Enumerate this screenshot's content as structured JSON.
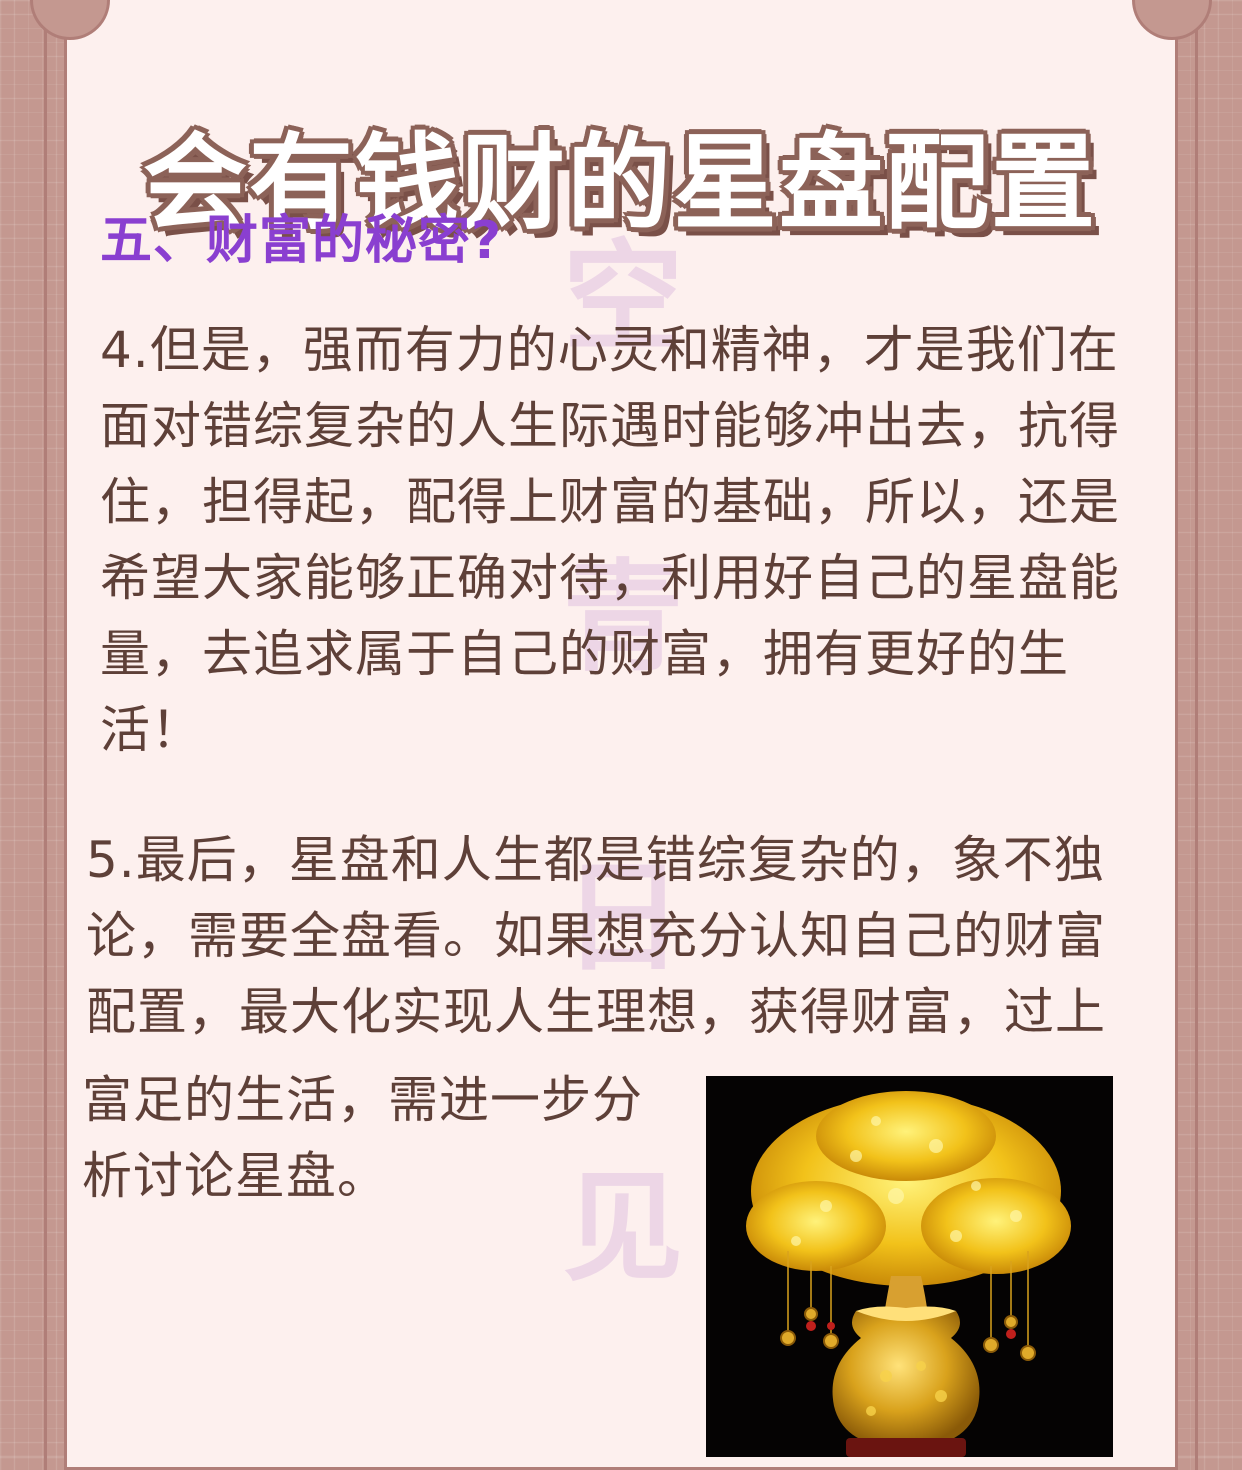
{
  "page": {
    "title": "会有钱财的星盘配置",
    "section_heading": "五、财富的秘密?",
    "watermark": [
      "空",
      "青",
      "日",
      "见"
    ],
    "paragraphs": [
      "4.但是，强而有力的心灵和精神，才是我们在面对错综复杂的人生际遇时能够冲出去，抗得住，担得起，配得上财富的基础，所以，还是希望大家能够正确对待，利用好自己的星盘能量，去追求属于自己的财富，拥有更好的生活！",
      "5.最后，星盘和人生都是错综复杂的，象不独论，需要全盘看。如果想充分认知自己的财富配置，最大化实现人生理想，获得财富，过上",
      "富足的生活，需进一步分析讨论星盘。"
    ]
  },
  "image": {
    "subject": "money-tree-photo"
  },
  "colors": {
    "background": "#c49890",
    "card": "#fdf0ee",
    "frame": "#b07e78",
    "heading": "#8a3fd0",
    "body_text": "#5e4038",
    "title_outline": "#8c6258"
  }
}
